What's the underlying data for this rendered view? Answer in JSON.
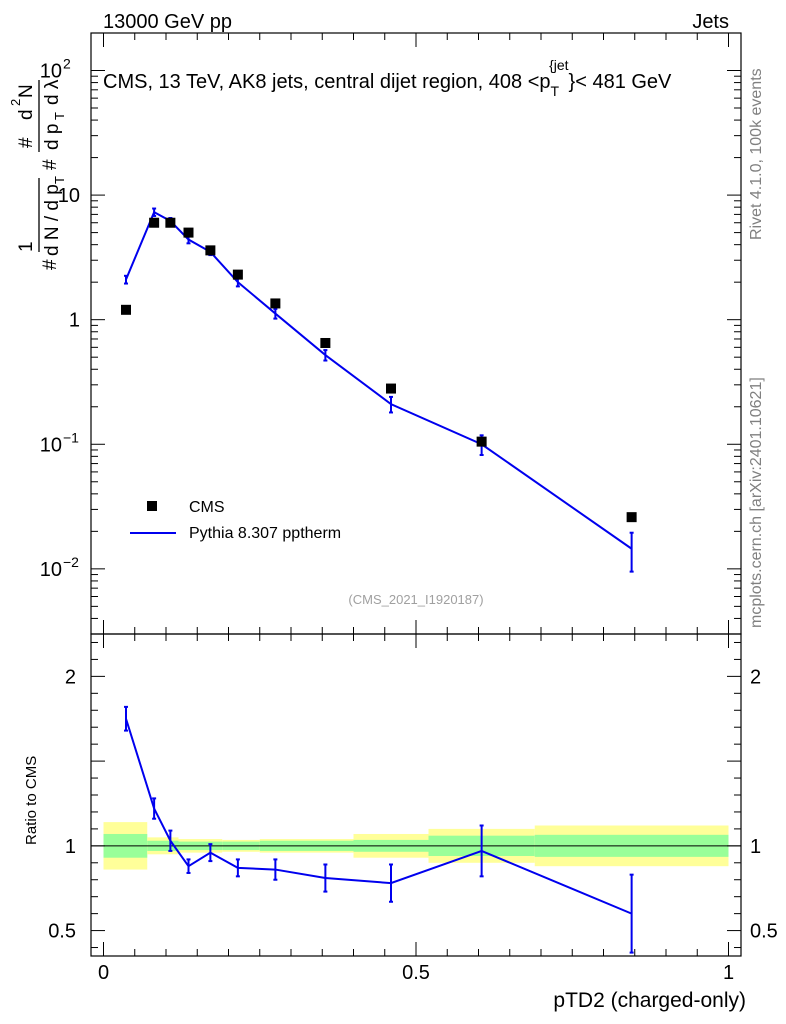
{
  "header": {
    "left": "13000 GeV pp",
    "right": "Jets"
  },
  "side_labels": {
    "rivet": "Rivet 4.1.0,  100k events",
    "mcplots": "mcplots.cern.ch [arXiv:2401.10621]"
  },
  "chart_data": {
    "type": "line",
    "title": "CMS, 13 TeV, AK8 jets, central dijet region, 408 < p_T^{jet} < 481 GeV",
    "title_parts": {
      "main": "CMS, 13 TeV, AK8 jets, central dijet region, 408 <p",
      "sub": "T",
      "sup": "{jet",
      "tail": "}< 481 GeV"
    },
    "watermark": "(CMS_2021_I1920187)",
    "xlabel": "pTD2 (charged-only)",
    "ylabel": "# 1 / dN/dp_T  # d²N / dp_T dλ",
    "ylabel_parts": [
      "#",
      "1",
      "d N / d p",
      "T",
      "#",
      "d",
      "2",
      "N",
      "d p",
      "T",
      "d",
      "λ"
    ],
    "ratio_ylabel": "Ratio to CMS",
    "xlim": [
      -0.02,
      1.02
    ],
    "ylim_log": [
      0.003,
      200
    ],
    "ratio_ylim": [
      0.35,
      2.25
    ],
    "x_ticks": [
      0,
      0.5,
      1
    ],
    "x_tick_labels": [
      "0",
      "0.5",
      "1"
    ],
    "y_ticks_major": [
      0.01,
      0.1,
      1,
      10,
      100
    ],
    "y_tick_labels": [
      {
        "base": "10",
        "exp": "−2"
      },
      {
        "base": "10",
        "exp": "−1"
      },
      {
        "base": "1",
        "exp": ""
      },
      {
        "base": "10",
        "exp": ""
      },
      {
        "base": "10",
        "exp": "2"
      }
    ],
    "ratio_ticks": [
      0.5,
      1,
      2
    ],
    "ratio_tick_labels": [
      "0.5",
      "1",
      "2"
    ],
    "legend": [
      "CMS",
      "Pythia 8.307 pptherm"
    ],
    "series": [
      {
        "name": "CMS",
        "marker": "square",
        "color": "#000000",
        "x": [
          0.036,
          0.081,
          0.107,
          0.136,
          0.171,
          0.215,
          0.275,
          0.355,
          0.46,
          0.605,
          0.845
        ],
        "y": [
          1.2,
          6.0,
          6.0,
          5.0,
          3.6,
          2.3,
          1.35,
          0.65,
          0.28,
          0.105,
          0.026
        ]
      },
      {
        "name": "Pythia 8.307 pptherm",
        "marker": "line",
        "color": "#0000ee",
        "x": [
          0.036,
          0.081,
          0.107,
          0.136,
          0.171,
          0.215,
          0.275,
          0.355,
          0.46,
          0.605,
          0.845
        ],
        "y": [
          2.1,
          7.3,
          6.2,
          4.4,
          3.5,
          2.0,
          1.12,
          0.52,
          0.21,
          0.1,
          0.0145
        ],
        "yerr": [
          0.15,
          0.5,
          0.35,
          0.3,
          0.2,
          0.15,
          0.1,
          0.05,
          0.03,
          0.018,
          0.005
        ]
      }
    ],
    "ratio": {
      "x": [
        0.036,
        0.081,
        0.107,
        0.136,
        0.171,
        0.215,
        0.275,
        0.355,
        0.46,
        0.605,
        0.845
      ],
      "y": [
        1.75,
        1.22,
        1.03,
        0.88,
        0.96,
        0.87,
        0.86,
        0.81,
        0.78,
        0.97,
        0.6
      ],
      "yerr": [
        0.07,
        0.06,
        0.06,
        0.04,
        0.05,
        0.05,
        0.06,
        0.08,
        0.11,
        0.15,
        0.23
      ]
    },
    "cms_uncertainty_bands": [
      {
        "x0": 0.0,
        "x1": 0.07,
        "stat": 0.07,
        "total": 0.14
      },
      {
        "x0": 0.07,
        "x1": 0.12,
        "stat": 0.03,
        "total": 0.05
      },
      {
        "x0": 0.12,
        "x1": 0.19,
        "stat": 0.025,
        "total": 0.04
      },
      {
        "x0": 0.19,
        "x1": 0.25,
        "stat": 0.025,
        "total": 0.035
      },
      {
        "x0": 0.25,
        "x1": 0.32,
        "stat": 0.03,
        "total": 0.04
      },
      {
        "x0": 0.32,
        "x1": 0.4,
        "stat": 0.03,
        "total": 0.04
      },
      {
        "x0": 0.4,
        "x1": 0.52,
        "stat": 0.035,
        "total": 0.07
      },
      {
        "x0": 0.52,
        "x1": 0.69,
        "stat": 0.06,
        "total": 0.1
      },
      {
        "x0": 0.69,
        "x1": 1.0,
        "stat": 0.065,
        "total": 0.12
      }
    ],
    "band_colors": {
      "stat": "#99ff99",
      "total": "#ffff99"
    }
  }
}
